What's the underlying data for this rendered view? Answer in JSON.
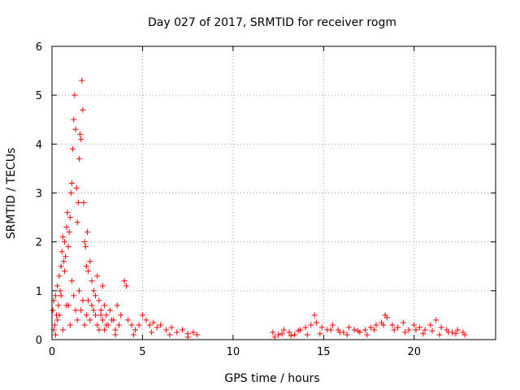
{
  "chart_data": {
    "type": "scatter",
    "title": "Day 027 of 2017, SRMTID for receiver rogm",
    "xlabel": "GPS time / hours",
    "ylabel": "SRMTID / TECUs",
    "xlim": [
      0,
      24.5
    ],
    "ylim": [
      0,
      6
    ],
    "xticks": [
      0,
      5,
      10,
      15,
      20
    ],
    "xtick_labels": [
      "0",
      "5",
      "10",
      "15",
      "20"
    ],
    "yticks": [
      0,
      1,
      2,
      3,
      4,
      5,
      6
    ],
    "ytick_labels": [
      "0",
      "1",
      "2",
      "3",
      "4",
      "5",
      "6"
    ],
    "grid": true,
    "marker": "+",
    "series": [
      {
        "name": "SRMTID",
        "color": "#ff0000",
        "x": [
          0.05,
          0.1,
          0.15,
          0.2,
          0.25,
          0.3,
          0.35,
          0.4,
          0.45,
          0.5,
          0.55,
          0.6,
          0.65,
          0.7,
          0.75,
          0.8,
          0.85,
          0.9,
          0.95,
          1.0,
          1.05,
          1.1,
          1.15,
          1.2,
          1.25,
          1.3,
          1.35,
          1.4,
          1.45,
          1.5,
          1.55,
          1.6,
          1.65,
          1.7,
          1.75,
          1.8,
          1.85,
          1.9,
          1.95,
          2.0,
          2.1,
          2.2,
          2.3,
          2.4,
          2.5,
          2.6,
          2.7,
          2.8,
          2.9,
          3.0,
          3.2,
          3.4,
          3.6,
          3.8,
          4.0,
          4.1,
          4.2,
          4.4,
          4.6,
          4.8,
          5.0,
          5.2,
          5.4,
          5.6,
          5.8,
          6.0,
          6.3,
          6.6,
          6.9,
          7.2,
          7.5,
          7.8,
          8.0,
          0.1,
          0.3,
          0.5,
          0.7,
          0.9,
          1.1,
          1.3,
          1.5,
          1.7,
          1.9,
          2.1,
          2.3,
          2.5,
          2.7,
          2.9,
          3.1,
          3.3,
          3.5,
          3.7,
          0.2,
          0.4,
          0.6,
          0.8,
          1.0,
          1.2,
          1.4,
          1.6,
          1.8,
          2.0,
          2.2,
          2.4,
          2.6,
          2.8,
          3.0,
          3.5,
          4.5,
          5.5,
          6.5,
          7.5,
          12.2,
          12.5,
          12.8,
          13.1,
          13.4,
          13.7,
          14.0,
          14.3,
          14.5,
          14.6,
          14.9,
          15.2,
          15.5,
          15.8,
          16.1,
          16.4,
          16.7,
          17.0,
          17.3,
          17.6,
          17.9,
          18.2,
          18.4,
          18.5,
          18.8,
          19.1,
          19.4,
          19.7,
          20.0,
          20.3,
          20.6,
          20.9,
          21.2,
          21.5,
          21.8,
          22.1,
          22.4,
          22.7,
          12.3,
          12.7,
          13.2,
          13.6,
          14.1,
          14.8,
          15.4,
          15.9,
          16.3,
          16.9,
          17.4,
          17.8,
          18.3,
          18.9,
          19.5,
          20.1,
          20.5,
          21.0,
          21.4,
          21.9,
          22.3,
          22.8
        ],
        "y": [
          0.6,
          0.8,
          0.3,
          0.9,
          0.5,
          1.1,
          0.7,
          1.3,
          1.0,
          1.5,
          1.8,
          2.1,
          1.6,
          2.0,
          1.7,
          2.3,
          2.6,
          1.9,
          2.2,
          2.5,
          3.0,
          3.2,
          3.9,
          4.5,
          5.0,
          4.3,
          3.1,
          2.4,
          2.8,
          3.7,
          4.2,
          4.1,
          5.3,
          4.7,
          2.8,
          2.0,
          1.9,
          1.5,
          2.2,
          1.4,
          1.6,
          1.2,
          1.0,
          0.9,
          1.3,
          0.8,
          0.6,
          1.1,
          0.7,
          0.5,
          0.6,
          0.4,
          0.7,
          0.5,
          1.2,
          1.1,
          0.4,
          0.3,
          0.2,
          0.3,
          0.5,
          0.4,
          0.3,
          0.35,
          0.25,
          0.3,
          0.2,
          0.25,
          0.15,
          0.2,
          0.12,
          0.15,
          0.1,
          0.2,
          0.4,
          0.9,
          1.4,
          0.7,
          1.2,
          0.6,
          1.0,
          0.8,
          0.5,
          0.4,
          0.6,
          0.3,
          0.5,
          0.2,
          0.3,
          0.4,
          0.2,
          0.3,
          0.1,
          0.5,
          0.2,
          0.7,
          0.3,
          0.9,
          0.4,
          0.6,
          0.3,
          0.8,
          0.7,
          0.5,
          0.2,
          0.4,
          0.3,
          0.1,
          0.1,
          0.15,
          0.1,
          0.05,
          0.15,
          0.1,
          0.2,
          0.15,
          0.1,
          0.2,
          0.25,
          0.3,
          0.5,
          0.35,
          0.25,
          0.2,
          0.3,
          0.2,
          0.15,
          0.25,
          0.2,
          0.15,
          0.2,
          0.25,
          0.3,
          0.35,
          0.5,
          0.45,
          0.3,
          0.25,
          0.35,
          0.2,
          0.3,
          0.25,
          0.2,
          0.3,
          0.4,
          0.25,
          0.2,
          0.15,
          0.2,
          0.15,
          0.05,
          0.12,
          0.08,
          0.18,
          0.1,
          0.12,
          0.2,
          0.15,
          0.1,
          0.18,
          0.1,
          0.2,
          0.3,
          0.2,
          0.15,
          0.2,
          0.12,
          0.18,
          0.1,
          0.15,
          0.12,
          0.1
        ]
      }
    ]
  }
}
